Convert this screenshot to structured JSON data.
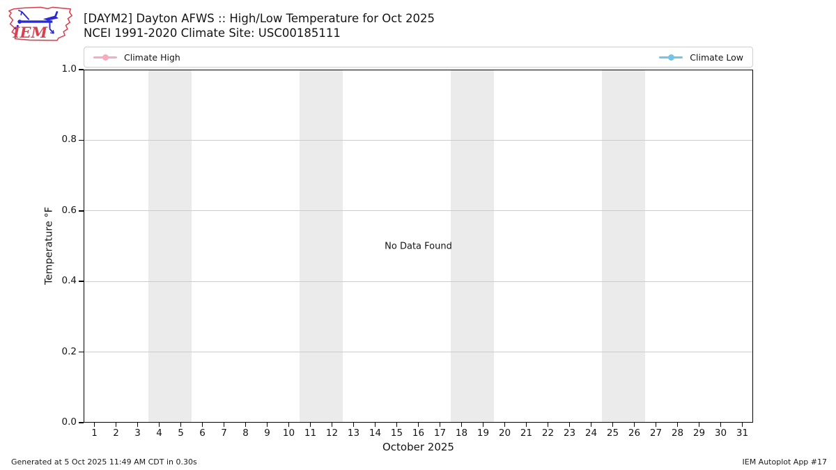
{
  "logo": {
    "text": "IEM"
  },
  "legend": [
    {
      "label": "Climate High",
      "color": "#f7abbd"
    },
    {
      "label": "Climate Low",
      "color": "#72c5e6"
    }
  ],
  "chart_data": {
    "type": "line",
    "title": "[DAYM2] Dayton AFWS :: High/Low Temperature for Oct 2025",
    "subtitle": "NCEI 1991-2020 Climate Site: USC00185111",
    "xlabel": "October 2025",
    "ylabel": "Temperature °F",
    "annotation": "No Data Found",
    "xlim": [
      0.5,
      31.5
    ],
    "ylim": [
      0.0,
      1.0
    ],
    "xticks": [
      1,
      2,
      3,
      4,
      5,
      6,
      7,
      8,
      9,
      10,
      11,
      12,
      13,
      14,
      15,
      16,
      17,
      18,
      19,
      20,
      21,
      22,
      23,
      24,
      25,
      26,
      27,
      28,
      29,
      30,
      31
    ],
    "yticks": [
      0.0,
      0.2,
      0.4,
      0.6,
      0.8,
      1.0
    ],
    "grid": true,
    "grid_color": "#cccccc",
    "band_color": "#ebebeb",
    "weekend_bands": [
      [
        3.5,
        5.5
      ],
      [
        10.5,
        12.5
      ],
      [
        17.5,
        19.5
      ],
      [
        24.5,
        26.5
      ]
    ],
    "legend_position": "top, spanning plot width",
    "series": [
      {
        "name": "Climate High",
        "color": "#f7abbd",
        "x": [],
        "y": []
      },
      {
        "name": "Climate Low",
        "color": "#72c5e6",
        "x": [],
        "y": []
      }
    ]
  },
  "footer": {
    "left": "Generated at 5 Oct 2025 11:49 AM CDT in 0.30s",
    "right": "IEM Autoplot App #17"
  }
}
